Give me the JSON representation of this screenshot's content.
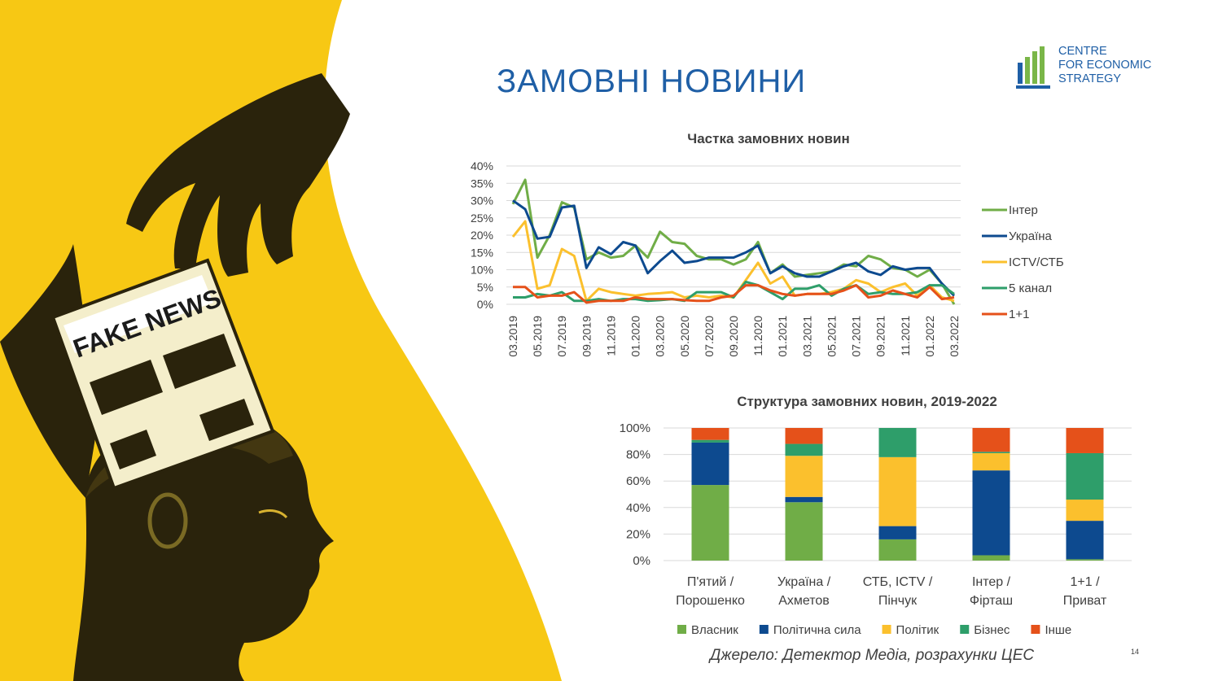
{
  "slide": {
    "title": "ЗАМОВНІ НОВИНИ",
    "illustration_text": "FAKE NEWS",
    "logo": {
      "line1": "CENTRE",
      "line2": "FOR ECONOMIC",
      "line3": "STRATEGY"
    },
    "source": "Джерело: Детектор Медіа, розрахунки ЦЕС",
    "page_number": "14"
  },
  "chart_data": [
    {
      "type": "line",
      "title": "Частка замовних новин",
      "x": [
        "03.2019",
        "04.2019",
        "05.2019",
        "06.2019",
        "07.2019",
        "08.2019",
        "09.2019",
        "10.2019",
        "11.2019",
        "12.2019",
        "01.2020",
        "02.2020",
        "03.2020",
        "04.2020",
        "05.2020",
        "06.2020",
        "07.2020",
        "08.2020",
        "09.2020",
        "10.2020",
        "11.2020",
        "12.2020",
        "01.2021",
        "02.2021",
        "03.2021",
        "04.2021",
        "05.2021",
        "06.2021",
        "07.2021",
        "08.2021",
        "09.2021",
        "10.2021",
        "11.2021",
        "12.2021",
        "01.2022",
        "02.2022",
        "03.2022"
      ],
      "x_tick_labels": [
        "03.2019",
        "05.2019",
        "07.2019",
        "09.2019",
        "11.2019",
        "01.2020",
        "03.2020",
        "05.2020",
        "07.2020",
        "09.2020",
        "11.2020",
        "01.2021",
        "03.2021",
        "05.2021",
        "07.2021",
        "09.2021",
        "11.2021",
        "01.2022",
        "03.2022"
      ],
      "y_ticks": [
        "0%",
        "5%",
        "10%",
        "15%",
        "20%",
        "25%",
        "30%",
        "35%",
        "40%"
      ],
      "ylim": [
        0,
        40
      ],
      "grid": true,
      "legend_position": "right",
      "series": [
        {
          "name": "Інтер",
          "color": "#70ad47",
          "values": [
            29,
            36,
            13.5,
            20,
            29.5,
            28,
            13,
            15,
            13.5,
            14,
            17,
            13.5,
            21,
            18,
            17.5,
            14,
            13,
            13,
            11.5,
            13,
            18,
            9,
            11.5,
            8,
            8.5,
            9,
            9.5,
            11.5,
            11,
            14,
            13,
            10.5,
            10,
            8,
            10,
            6,
            0
          ]
        },
        {
          "name": "Україна",
          "color": "#0d4a8f",
          "values": [
            30,
            27.5,
            19,
            19.5,
            28,
            28.5,
            10.5,
            16.5,
            14.5,
            18,
            17,
            9,
            12.5,
            15.5,
            12,
            12.5,
            13.5,
            13.5,
            13.5,
            15,
            17,
            9,
            11,
            9,
            8,
            8,
            9.5,
            11,
            12,
            9.5,
            8.5,
            11,
            10,
            10.5,
            10.5,
            6,
            2.5
          ]
        },
        {
          "name": "ICTV/СТБ",
          "color": "#fbc02d",
          "values": [
            19.5,
            24,
            4.5,
            5.5,
            16,
            14,
            1,
            4.5,
            3.5,
            3,
            2.5,
            3,
            3.2,
            3.5,
            2,
            2.5,
            2,
            2.5,
            2,
            7,
            12,
            6,
            8,
            2.5,
            3,
            3,
            3.5,
            4.5,
            7,
            6,
            3.5,
            5,
            6,
            2.5,
            5.5,
            2,
            1
          ]
        },
        {
          "name": "5 канал",
          "color": "#2e9e6a",
          "values": [
            2,
            2,
            3,
            2.5,
            3.5,
            1,
            1,
            1.5,
            1,
            1.5,
            1.5,
            1,
            1.2,
            1.5,
            1,
            3.5,
            3.5,
            3.5,
            2,
            6.5,
            5.5,
            3.5,
            1.5,
            4.5,
            4.5,
            5.5,
            2.5,
            4.5,
            5.5,
            3,
            3.5,
            3,
            3,
            3.5,
            5.5,
            5.5,
            3
          ]
        },
        {
          "name": "1+1",
          "color": "#e5511a",
          "values": [
            5,
            5,
            2,
            2.5,
            2.5,
            3.5,
            0.5,
            1,
            1,
            1,
            2,
            1.5,
            1.5,
            1.5,
            1.2,
            1,
            1,
            2,
            2.5,
            5.5,
            5.5,
            4,
            3,
            2.5,
            3,
            3,
            3,
            4,
            5.5,
            2,
            2.5,
            4,
            3,
            2,
            5,
            1.5,
            2
          ]
        }
      ]
    },
    {
      "type": "bar",
      "stacked": true,
      "title": "Структура замовних новин, 2019-2022",
      "categories": [
        "П'ятий / Порошенко",
        "Україна / Ахметов",
        "СТБ, ICTV / Пінчук",
        "Інтер / Фірташ",
        "1+1 / Приват"
      ],
      "y_ticks": [
        "0%",
        "20%",
        "40%",
        "60%",
        "80%",
        "100%"
      ],
      "ylim": [
        0,
        100
      ],
      "grid": true,
      "legend_position": "bottom",
      "series": [
        {
          "name": "Власник",
          "color": "#70ad47",
          "values": [
            57,
            44,
            16,
            4,
            1
          ]
        },
        {
          "name": "Політична сила",
          "color": "#0d4a8f",
          "values": [
            32,
            4,
            10,
            64,
            29
          ]
        },
        {
          "name": "Політик",
          "color": "#fbc02d",
          "values": [
            0,
            31,
            52,
            13,
            16
          ]
        },
        {
          "name": "Бізнес",
          "color": "#2e9e6a",
          "values": [
            2,
            9,
            22,
            1,
            35
          ]
        },
        {
          "name": "Інше",
          "color": "#e5511a",
          "values": [
            9,
            12,
            0,
            18,
            19
          ]
        }
      ]
    }
  ]
}
